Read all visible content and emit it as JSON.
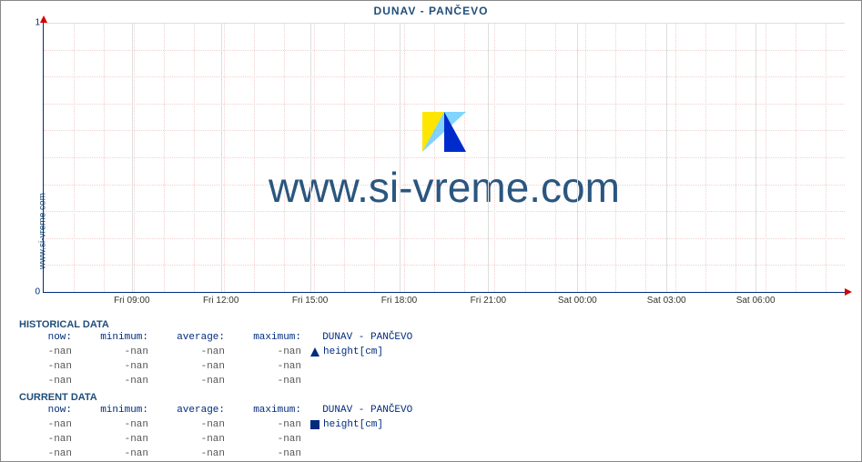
{
  "title": "DUNAV -  PANČEVO",
  "side_label": "www.si-vreme.com",
  "watermark": "www.si-vreme.com",
  "colors": {
    "axis": "#002b7f",
    "axis_arrow": "#d40000",
    "title": "#1f4e79",
    "grid_major": "#dedede",
    "grid_minor": "#f0d0d0",
    "text_gray": "#555555",
    "background": "#ffffff",
    "border": "#888888",
    "logo_yellow": "#ffe600",
    "logo_cyan": "#2bb7ff",
    "logo_blue": "#002bcc"
  },
  "chart": {
    "type": "line",
    "x_ticks": [
      "Fri 09:00",
      "Fri 12:00",
      "Fri 15:00",
      "Fri 18:00",
      "Fri 21:00",
      "Sat 00:00",
      "Sat 03:00",
      "Sat 06:00"
    ],
    "x_minor_per_major": 3,
    "y_ticks": [
      "0",
      "1"
    ],
    "y_minor_count": 10,
    "ylim": [
      0,
      1
    ],
    "series": []
  },
  "tables": {
    "historical": {
      "heading": "HISTORICAL DATA",
      "columns": [
        "now:",
        "minimum:",
        "average:",
        "maximum:"
      ],
      "series_label": "DUNAV -  PANČEVO",
      "unit_label": "height[cm]",
      "rows": [
        [
          "-nan",
          "-nan",
          "-nan",
          "-nan"
        ],
        [
          "-nan",
          "-nan",
          "-nan",
          "-nan"
        ],
        [
          "-nan",
          "-nan",
          "-nan",
          "-nan"
        ]
      ]
    },
    "current": {
      "heading": "CURRENT DATA",
      "columns": [
        "now:",
        "minimum:",
        "average:",
        "maximum:"
      ],
      "series_label": "DUNAV -  PANČEVO",
      "unit_label": "height[cm]",
      "rows": [
        [
          "-nan",
          "-nan",
          "-nan",
          "-nan"
        ],
        [
          "-nan",
          "-nan",
          "-nan",
          "-nan"
        ],
        [
          "-nan",
          "-nan",
          "-nan",
          "-nan"
        ]
      ]
    }
  }
}
